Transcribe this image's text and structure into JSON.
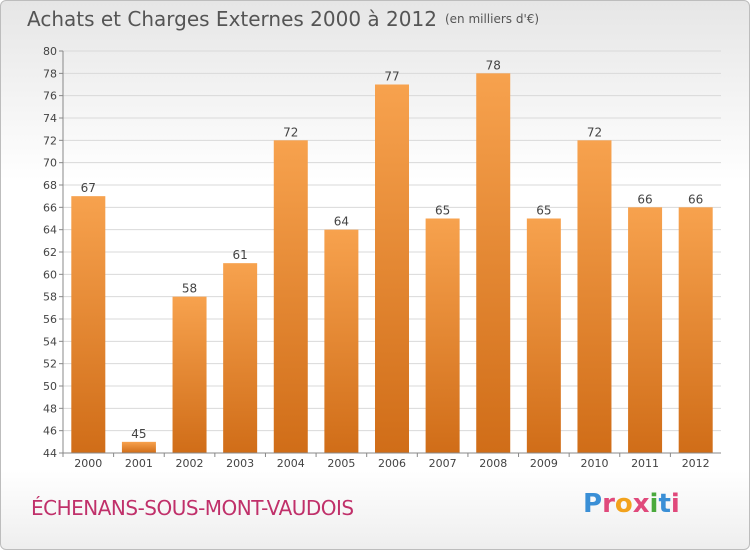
{
  "header": {
    "title": "Achats et Charges Externes 2000 à 2012",
    "subtitle": "(en milliers d'€)"
  },
  "footer": {
    "commune": "ÉCHENANS-SOUS-MONT-VAUDOIS",
    "logo_text": "Proxiti"
  },
  "colors": {
    "bar_top": "#f7a24e",
    "bar_bottom": "#d06d18",
    "commune": "#c0306a"
  },
  "chart_data": {
    "type": "bar",
    "title": "Achats et Charges Externes 2000 à 2012",
    "subtitle": "(en milliers d'€)",
    "categories": [
      "2000",
      "2001",
      "2002",
      "2003",
      "2004",
      "2005",
      "2006",
      "2007",
      "2008",
      "2009",
      "2010",
      "2011",
      "2012"
    ],
    "values": [
      67,
      45,
      58,
      61,
      72,
      64,
      77,
      65,
      78,
      65,
      72,
      66,
      66
    ],
    "ylim": [
      44,
      80
    ],
    "yticks": [
      44,
      46,
      48,
      50,
      52,
      54,
      56,
      58,
      60,
      62,
      64,
      66,
      68,
      70,
      72,
      74,
      76,
      78,
      80
    ],
    "grid": true,
    "legend": "none"
  }
}
